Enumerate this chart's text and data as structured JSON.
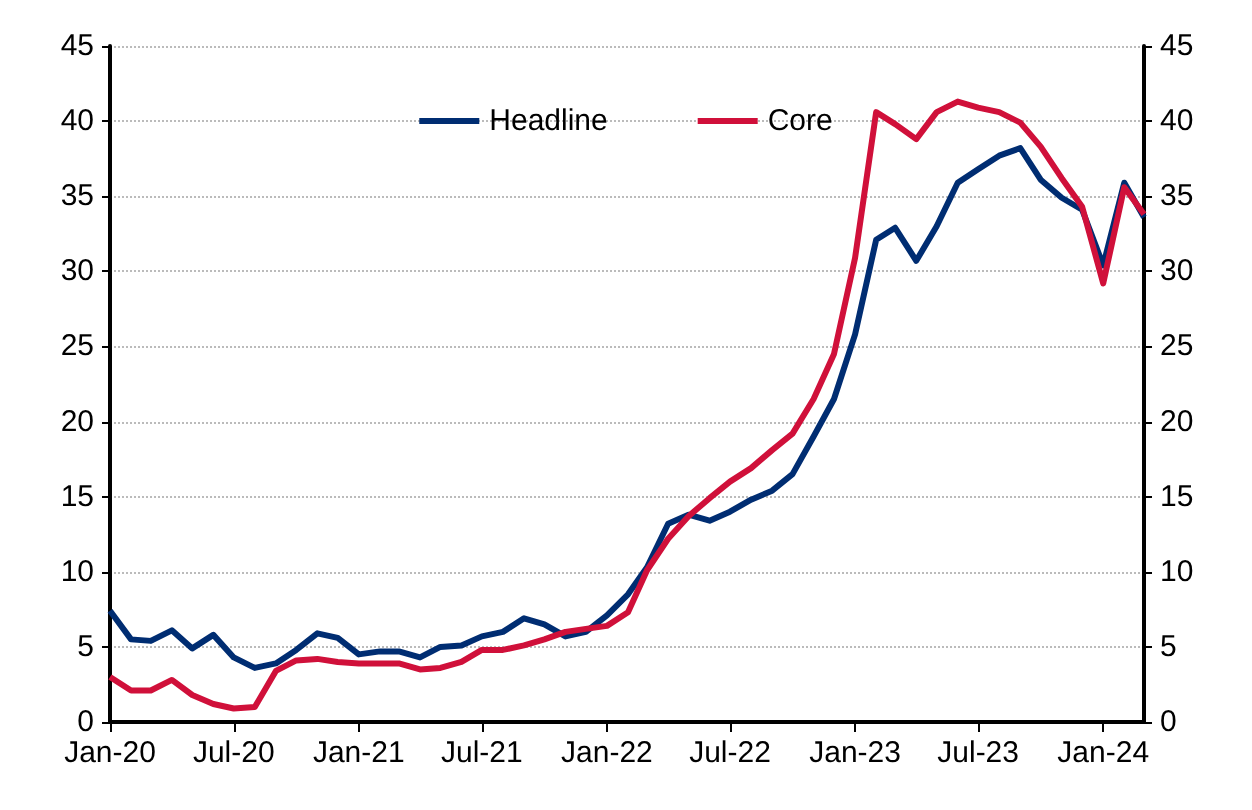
{
  "chart_data": {
    "type": "line",
    "x": [
      "2020-01",
      "2020-02",
      "2020-03",
      "2020-04",
      "2020-05",
      "2020-06",
      "2020-07",
      "2020-08",
      "2020-09",
      "2020-10",
      "2020-11",
      "2020-12",
      "2021-01",
      "2021-02",
      "2021-03",
      "2021-04",
      "2021-05",
      "2021-06",
      "2021-07",
      "2021-08",
      "2021-09",
      "2021-10",
      "2021-11",
      "2021-12",
      "2022-01",
      "2022-02",
      "2022-03",
      "2022-04",
      "2022-05",
      "2022-06",
      "2022-07",
      "2022-08",
      "2022-09",
      "2022-10",
      "2022-11",
      "2022-12",
      "2023-01",
      "2023-02",
      "2023-03",
      "2023-04",
      "2023-05",
      "2023-06",
      "2023-07",
      "2023-08",
      "2023-09",
      "2023-10",
      "2023-11",
      "2023-12",
      "2024-01",
      "2024-02",
      "2024-03"
    ],
    "series": [
      {
        "name": "Headline",
        "color": "#002d72",
        "values": [
          7.4,
          5.5,
          5.4,
          6.1,
          4.9,
          5.8,
          4.3,
          3.6,
          3.9,
          4.8,
          5.9,
          5.6,
          4.5,
          4.7,
          4.7,
          4.3,
          5.0,
          5.1,
          5.7,
          6.0,
          6.9,
          6.5,
          5.7,
          6.0,
          7.1,
          8.5,
          10.3,
          13.2,
          13.8,
          13.4,
          14.0,
          14.8,
          15.4,
          16.5,
          19.0,
          21.5,
          25.8,
          32.1,
          32.9,
          30.7,
          33.0,
          35.9,
          36.8,
          37.7,
          38.2,
          36.1,
          34.9,
          34.1,
          30.4,
          35.9,
          33.6
        ]
      },
      {
        "name": "Core",
        "color": "#d0103a",
        "values": [
          3.0,
          2.1,
          2.1,
          2.8,
          1.8,
          1.2,
          0.9,
          1.0,
          3.4,
          4.1,
          4.2,
          4.0,
          3.9,
          3.9,
          3.9,
          3.5,
          3.6,
          4.0,
          4.8,
          4.8,
          5.1,
          5.5,
          6.0,
          6.2,
          6.4,
          7.3,
          10.1,
          12.2,
          13.7,
          14.9,
          16.0,
          16.9,
          18.1,
          19.2,
          21.5,
          24.5,
          30.9,
          40.6,
          39.8,
          38.8,
          40.6,
          41.3,
          40.9,
          40.6,
          39.9,
          38.3,
          36.2,
          34.3,
          29.2,
          35.6,
          33.8
        ]
      }
    ],
    "xlim": [
      "2020-01",
      "2024-03"
    ],
    "xticks": [
      {
        "value": "2020-01",
        "label": "Jan-20"
      },
      {
        "value": "2020-07",
        "label": "Jul-20"
      },
      {
        "value": "2021-01",
        "label": "Jan-21"
      },
      {
        "value": "2021-07",
        "label": "Jul-21"
      },
      {
        "value": "2022-01",
        "label": "Jan-22"
      },
      {
        "value": "2022-07",
        "label": "Jul-22"
      },
      {
        "value": "2023-01",
        "label": "Jan-23"
      },
      {
        "value": "2023-07",
        "label": "Jul-23"
      },
      {
        "value": "2024-01",
        "label": "Jan-24"
      }
    ],
    "ylim": [
      0,
      45
    ],
    "yticks": [
      0,
      5,
      10,
      15,
      20,
      25,
      30,
      35,
      40,
      45
    ],
    "y2lim": [
      0,
      45
    ],
    "y2ticks": [
      0,
      5,
      10,
      15,
      20,
      25,
      30,
      35,
      40,
      45
    ],
    "grid": "y",
    "legend": "top",
    "marker": "none",
    "line_style": "solid"
  }
}
